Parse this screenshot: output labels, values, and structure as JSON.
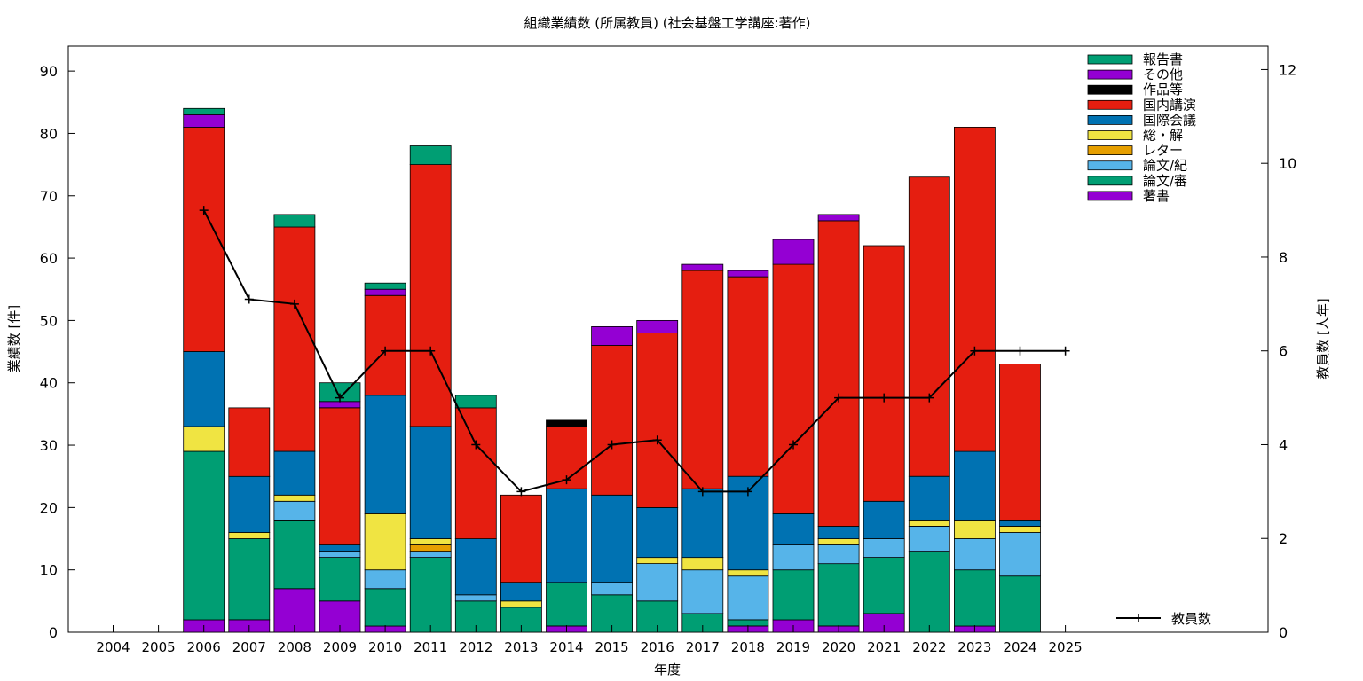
{
  "chart_data": {
    "type": "bar",
    "stacked": true,
    "title": "組織業績数 (所属教員) (社会基盤工学講座:著作)",
    "xlabel": "年度",
    "ylabel": "業績数 [件]",
    "y2label": "教員数 [人年]",
    "categories": [
      "2004",
      "2005",
      "2006",
      "2007",
      "2008",
      "2009",
      "2010",
      "2011",
      "2012",
      "2013",
      "2014",
      "2015",
      "2016",
      "2017",
      "2018",
      "2019",
      "2020",
      "2021",
      "2022",
      "2023",
      "2024",
      "2025"
    ],
    "ylim": [
      0,
      94
    ],
    "yticks": [
      0,
      10,
      20,
      30,
      40,
      50,
      60,
      70,
      80,
      90
    ],
    "y2lim": [
      0,
      12.5
    ],
    "y2ticks": [
      0,
      2,
      4,
      6,
      8,
      10,
      12
    ],
    "grid": false,
    "legend_position": "top-right",
    "series": [
      {
        "name": "著書",
        "color": "#9400d3",
        "values": [
          0,
          0,
          2,
          2,
          7,
          5,
          1,
          0,
          0,
          0,
          1,
          0,
          0,
          0,
          1,
          2,
          1,
          3,
          0,
          1,
          0,
          0
        ]
      },
      {
        "name": "論文/審",
        "color": "#009e73",
        "values": [
          0,
          0,
          27,
          13,
          11,
          7,
          6,
          12,
          5,
          4,
          7,
          6,
          5,
          3,
          1,
          8,
          10,
          9,
          13,
          9,
          9,
          0
        ]
      },
      {
        "name": "論文/紀",
        "color": "#56b4e9",
        "values": [
          0,
          0,
          0,
          0,
          3,
          1,
          3,
          1,
          1,
          0,
          0,
          2,
          6,
          7,
          7,
          4,
          3,
          3,
          4,
          5,
          7,
          0
        ]
      },
      {
        "name": "レター",
        "color": "#e69f00",
        "values": [
          0,
          0,
          0,
          0,
          0,
          0,
          0,
          1,
          0,
          0,
          0,
          0,
          0,
          0,
          0,
          0,
          0,
          0,
          0,
          0,
          0,
          0
        ]
      },
      {
        "name": "総・解",
        "color": "#f0e442",
        "values": [
          0,
          0,
          4,
          1,
          1,
          0,
          9,
          1,
          0,
          1,
          0,
          0,
          1,
          2,
          1,
          0,
          1,
          0,
          1,
          3,
          1,
          0
        ]
      },
      {
        "name": "国際会議",
        "color": "#0072b2",
        "values": [
          0,
          0,
          12,
          9,
          7,
          1,
          19,
          18,
          9,
          3,
          15,
          14,
          8,
          11,
          15,
          5,
          2,
          6,
          7,
          11,
          1,
          0
        ]
      },
      {
        "name": "国内講演",
        "color": "#e51e10",
        "values": [
          0,
          0,
          36,
          11,
          36,
          22,
          16,
          42,
          21,
          14,
          10,
          24,
          28,
          35,
          32,
          40,
          49,
          41,
          48,
          52,
          25,
          0
        ]
      },
      {
        "name": "作品等",
        "color": "#000000",
        "values": [
          0,
          0,
          0,
          0,
          0,
          0,
          0,
          0,
          0,
          0,
          1,
          0,
          0,
          0,
          0,
          0,
          0,
          0,
          0,
          0,
          0,
          0
        ]
      },
      {
        "name": "その他",
        "color": "#9400d3",
        "values": [
          0,
          0,
          2,
          0,
          0,
          1,
          1,
          0,
          0,
          0,
          0,
          3,
          2,
          1,
          1,
          4,
          1,
          0,
          0,
          0,
          0,
          0
        ]
      },
      {
        "name": "報告書",
        "color": "#009e73",
        "values": [
          0,
          0,
          1,
          0,
          2,
          3,
          1,
          3,
          2,
          0,
          0,
          0,
          0,
          0,
          0,
          0,
          0,
          0,
          0,
          0,
          0,
          0
        ]
      }
    ],
    "legend_order": [
      "報告書",
      "その他",
      "作品等",
      "国内講演",
      "国際会議",
      "総・解",
      "レター",
      "論文/紀",
      "論文/審",
      "著書"
    ],
    "line_series": {
      "name": "教員数",
      "axis": "y2",
      "color": "#000000",
      "values": [
        null,
        null,
        9,
        7.1,
        7,
        5,
        6,
        6,
        4,
        3,
        3.25,
        4,
        4.1,
        3,
        3,
        4,
        5,
        5,
        5,
        6,
        6,
        6
      ]
    }
  }
}
